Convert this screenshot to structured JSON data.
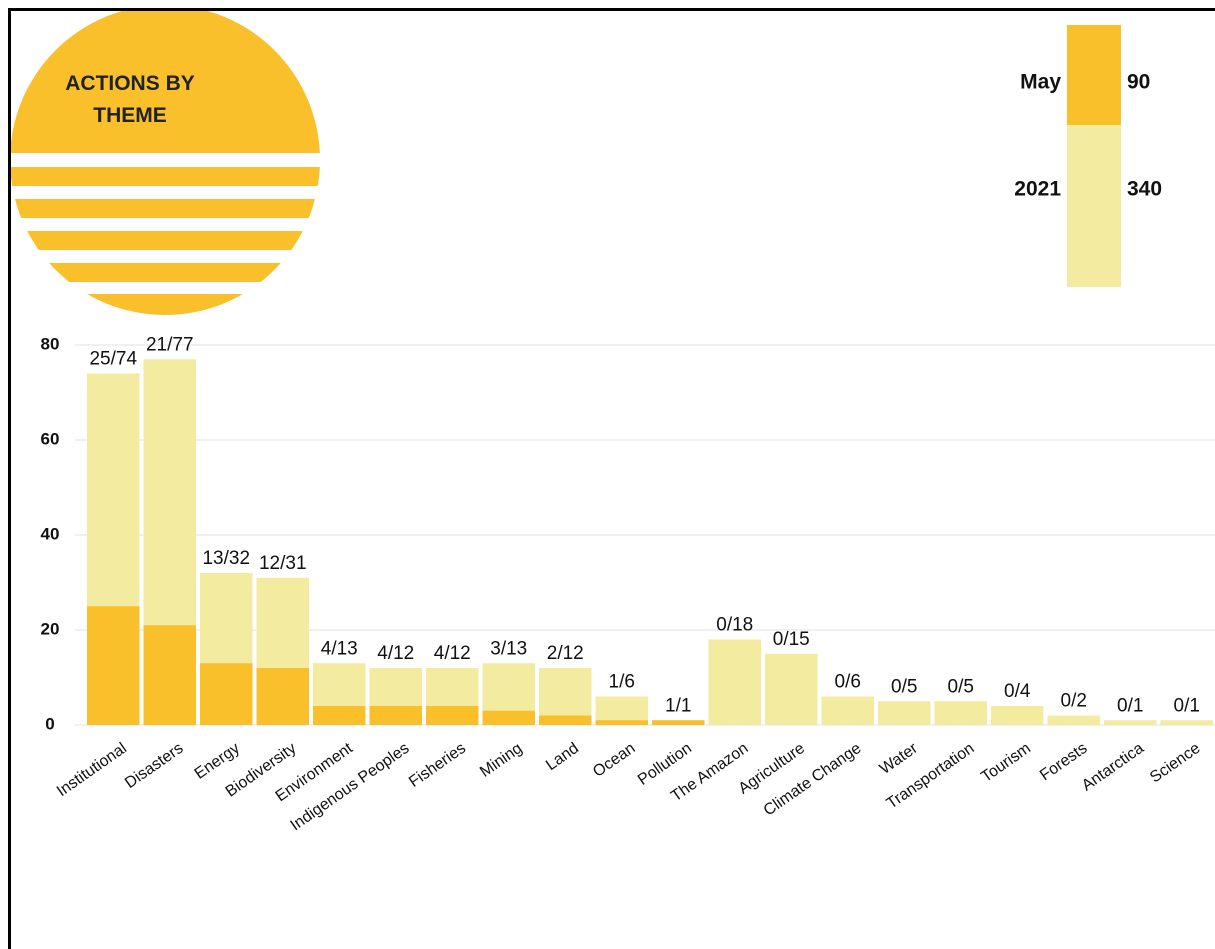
{
  "chart_data": {
    "type": "bar",
    "title": "ACTIONS BY THEME",
    "categories": [
      "Institutional",
      "Disasters",
      "Energy",
      "Biodiversity",
      "Environment",
      "Indigenous Peoples",
      "Fisheries",
      "Mining",
      "Land",
      "Ocean",
      "Pollution",
      "The Amazon",
      "Agriculture",
      "Climate Change",
      "Water",
      "Transportation",
      "Tourism",
      "Forests",
      "Antarctica",
      "Science"
    ],
    "series": [
      {
        "name": "2021",
        "color": "#f2eba0",
        "total": 340,
        "values": [
          74,
          77,
          32,
          31,
          13,
          12,
          12,
          13,
          12,
          6,
          1,
          18,
          15,
          6,
          5,
          5,
          4,
          2,
          1,
          1
        ]
      },
      {
        "name": "May",
        "color": "#f9c02c",
        "total": 90,
        "values": [
          25,
          21,
          13,
          12,
          4,
          4,
          4,
          3,
          2,
          1,
          1,
          0,
          0,
          0,
          0,
          0,
          0,
          0,
          0,
          0
        ]
      }
    ],
    "value_labels": [
      "25/74",
      "21/77",
      "13/32",
      "12/31",
      "4/13",
      "4/12",
      "4/12",
      "3/13",
      "2/12",
      "1/6",
      "1/1",
      "0/18",
      "0/15",
      "0/6",
      "0/5",
      "0/5",
      "0/4",
      "0/2",
      "0/1",
      "0/1"
    ],
    "ylim": [
      0,
      80
    ],
    "yticks": [
      0,
      20,
      40,
      60,
      80
    ],
    "grid": true
  }
}
